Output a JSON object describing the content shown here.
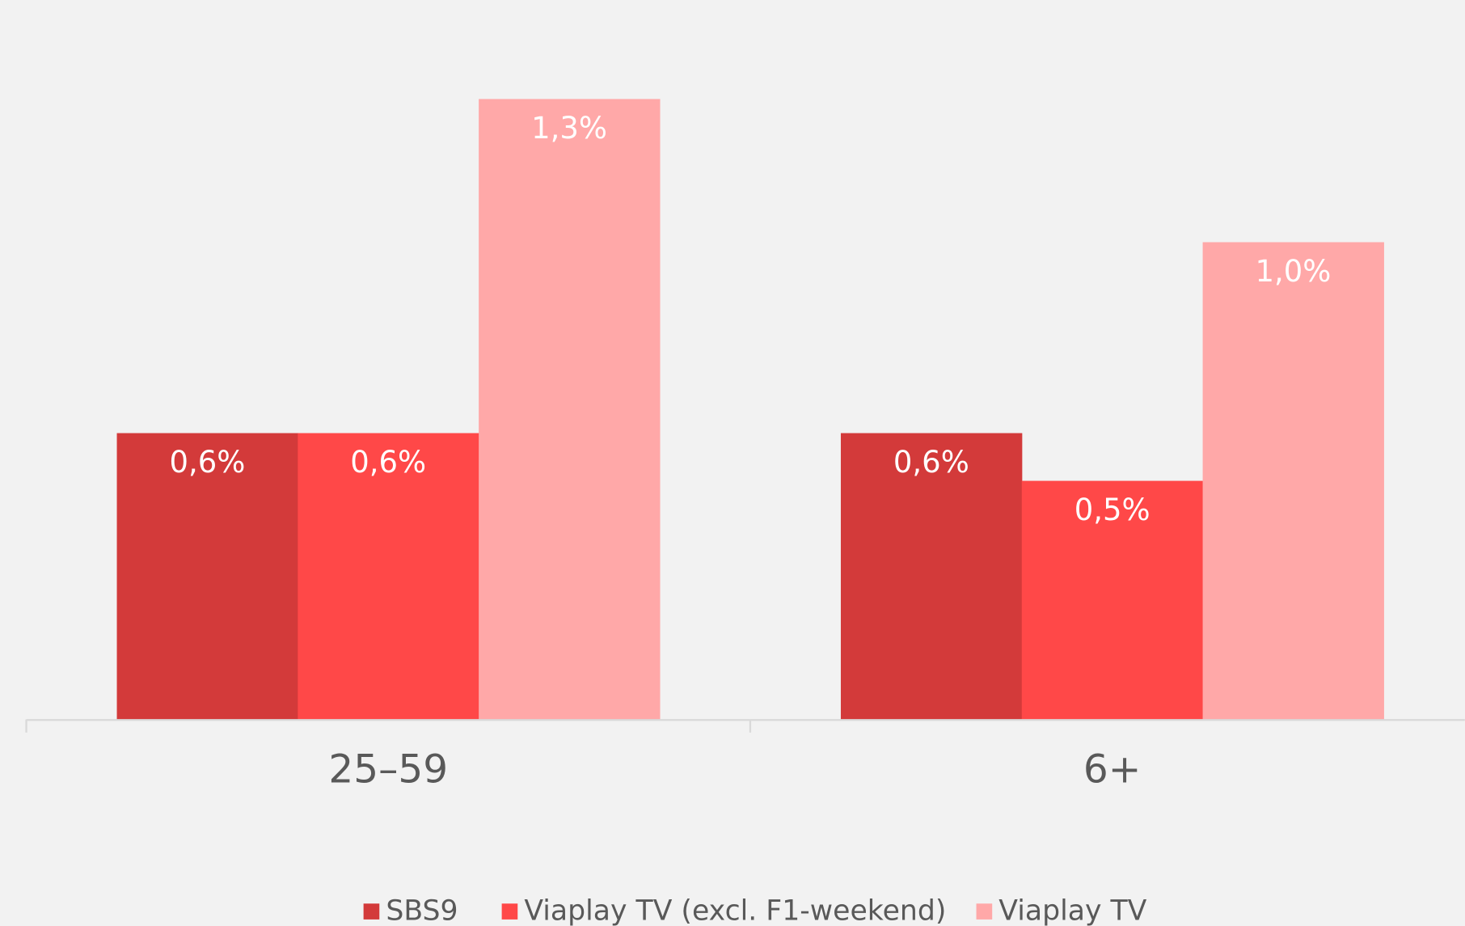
{
  "chart_data": {
    "type": "bar",
    "categories": [
      "25–59",
      "6+"
    ],
    "series": [
      {
        "name": "SBS9",
        "color": "#d33a3a",
        "values": [
          0.6,
          0.6
        ],
        "value_labels": [
          "0,6%",
          "0,6%"
        ]
      },
      {
        "name": "Viaplay TV (excl. F1-weekend)",
        "color": "#ff4848",
        "values": [
          0.6,
          0.5
        ],
        "value_labels": [
          "0,6%",
          "0,5%"
        ]
      },
      {
        "name": "Viaplay TV",
        "color": "#ffa8a8",
        "values": [
          1.3,
          1.0
        ],
        "value_labels": [
          "1,3%",
          "1,0%"
        ]
      }
    ],
    "ylim": [
      0,
      1.5
    ],
    "legend": "bottom"
  }
}
